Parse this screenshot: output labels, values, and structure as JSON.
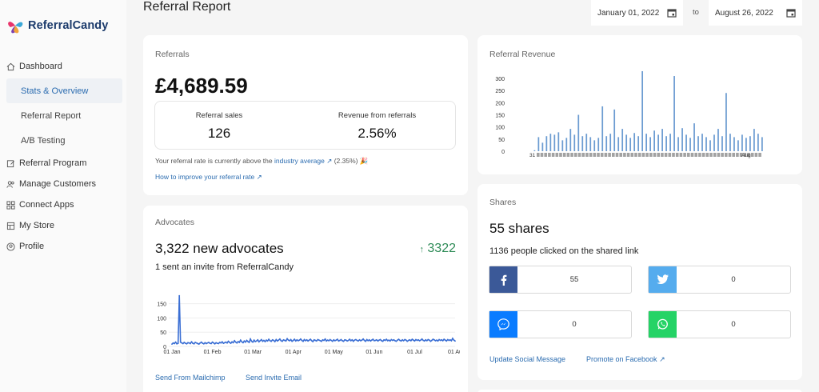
{
  "brand": {
    "name": "ReferralCandy"
  },
  "sidebar": {
    "items": [
      {
        "label": "Dashboard",
        "icon": "home-icon"
      },
      {
        "label": "Stats & Overview",
        "sub": true,
        "active": true
      },
      {
        "label": "Referral Report",
        "sub": true
      },
      {
        "label": "A/B Testing",
        "sub": true
      },
      {
        "label": "Referral Program",
        "icon": "edit-icon"
      },
      {
        "label": "Manage Customers",
        "icon": "users-icon"
      },
      {
        "label": "Connect Apps",
        "icon": "grid-icon"
      },
      {
        "label": "My Store",
        "icon": "store-icon"
      },
      {
        "label": "Profile",
        "icon": "profile-icon"
      }
    ]
  },
  "header": {
    "title": "Referral Report",
    "date_from": "January 01, 2022",
    "date_to_label": "to",
    "date_to": "August 26, 2022"
  },
  "referrals": {
    "label": "Referrals",
    "total": "£4,689.59",
    "sales_label": "Referral sales",
    "sales_value": "126",
    "revenue_label": "Revenue from referrals",
    "revenue_value": "2.56%",
    "note_prefix": "Your referral rate is currently above the",
    "note_link": "industry average",
    "note_suffix": "(2.35%) 🎉",
    "improve_link": "How to improve your referral rate"
  },
  "advocates": {
    "label": "Advocates",
    "headline": "3,322 new advocates",
    "delta": "3322",
    "sub": "1 sent an invite from ReferralCandy",
    "link_mailchimp": "Send From Mailchimp",
    "link_invite": "Send Invite Email"
  },
  "revenue": {
    "label": "Referral Revenue"
  },
  "shares": {
    "label": "Shares",
    "headline": "55 shares",
    "sub": "1136 people clicked on the shared link",
    "buttons": [
      {
        "network": "facebook",
        "count": "55",
        "color": "#3b5998"
      },
      {
        "network": "twitter",
        "count": "0",
        "color": "#55acee"
      },
      {
        "network": "messenger",
        "count": "0",
        "color": "#0a7cff"
      },
      {
        "network": "whatsapp",
        "count": "0",
        "color": "#25d366"
      }
    ],
    "link_update": "Update Social Message",
    "link_promote": "Promote on Facebook"
  },
  "chart_data": [
    {
      "type": "bar",
      "name": "referral-revenue",
      "title": "",
      "ylim": [
        0,
        320
      ],
      "yticks": [
        "300",
        "250",
        "200",
        "150",
        "100",
        "50",
        "0"
      ],
      "first_tick_label": "31",
      "last_tick_label": "Aug",
      "values": [
        0,
        4,
        0,
        58,
        0,
        35,
        0,
        62,
        0,
        72,
        0,
        68,
        0,
        78,
        0,
        45,
        0,
        55,
        0,
        92,
        0,
        68,
        0,
        150,
        0,
        62,
        0,
        72,
        0,
        58,
        0,
        45,
        0,
        55,
        0,
        185,
        0,
        62,
        0,
        72,
        0,
        172,
        0,
        58,
        0,
        92,
        0,
        68,
        0,
        55,
        0,
        75,
        0,
        62,
        0,
        330,
        0,
        72,
        0,
        58,
        0,
        85,
        0,
        68,
        0,
        92,
        0,
        62,
        0,
        72,
        0,
        310,
        0,
        58,
        0,
        95,
        0,
        68,
        0,
        55,
        0,
        115,
        0,
        62,
        0,
        72,
        0,
        58,
        0,
        45,
        0,
        68,
        0,
        92,
        0,
        62,
        0,
        240,
        0,
        72,
        0,
        58,
        0,
        45,
        0,
        68,
        0,
        55,
        0,
        62,
        0,
        92,
        0,
        72,
        0,
        58,
        0
      ],
      "color": "#6b9bd1"
    },
    {
      "type": "line",
      "name": "advocates",
      "title": "",
      "ylim": [
        0,
        180
      ],
      "yticks": [
        "150",
        "100",
        "50",
        "0"
      ],
      "xticks": [
        "01 Jan",
        "01 Feb",
        "01 Mar",
        "01 Apr",
        "01 May",
        "01 Jun",
        "01 Jul",
        "01 Au"
      ],
      "values": [
        8,
        12,
        10,
        15,
        9,
        11,
        178,
        15,
        12,
        10,
        14,
        11,
        9,
        13,
        12,
        10,
        16,
        11,
        9,
        14,
        12,
        10,
        8,
        12,
        15,
        11,
        9,
        13,
        10,
        12,
        14,
        11,
        10,
        15,
        12,
        9,
        13,
        11,
        10,
        14,
        12,
        16,
        11,
        13,
        15,
        12,
        18,
        14,
        11,
        16,
        13,
        20,
        15,
        12,
        17,
        14,
        22,
        16,
        13,
        19,
        15,
        21,
        17,
        14,
        26,
        18,
        15,
        22,
        17,
        19,
        23,
        16,
        20,
        24,
        18,
        21,
        17,
        22,
        19,
        25,
        20,
        18,
        23,
        21,
        17,
        24,
        19,
        22,
        26,
        20,
        18,
        23,
        21,
        19,
        27,
        22,
        20,
        24,
        18,
        21,
        25,
        19,
        23,
        20,
        22,
        26,
        21,
        18,
        24,
        20,
        23,
        19,
        22,
        25,
        20,
        17,
        23,
        21,
        19,
        24,
        22,
        20,
        18,
        23,
        21,
        26,
        19,
        22,
        20,
        24,
        21,
        18,
        23,
        20,
        22,
        25,
        19,
        21,
        24,
        20,
        18,
        23,
        22,
        19,
        21,
        25,
        20,
        23,
        18,
        22,
        24,
        21,
        19,
        23,
        20,
        22,
        26,
        21,
        18,
        24,
        20,
        23,
        19,
        22,
        25,
        20,
        21,
        23,
        19,
        22,
        24,
        20,
        18,
        23,
        21,
        25,
        20,
        22,
        19,
        24,
        21,
        23,
        20,
        18,
        22,
        25,
        21,
        19,
        23,
        20,
        24,
        22,
        18,
        21,
        23,
        20,
        25,
        22,
        19,
        24,
        21,
        23,
        20,
        22,
        26,
        21,
        19,
        23,
        20,
        24,
        22,
        18,
        21,
        25,
        23,
        20,
        22,
        19,
        24,
        21,
        23,
        20,
        25,
        22,
        19,
        24,
        21,
        23,
        20,
        28,
        22,
        19
      ],
      "color": "#3b6fd4"
    }
  ]
}
